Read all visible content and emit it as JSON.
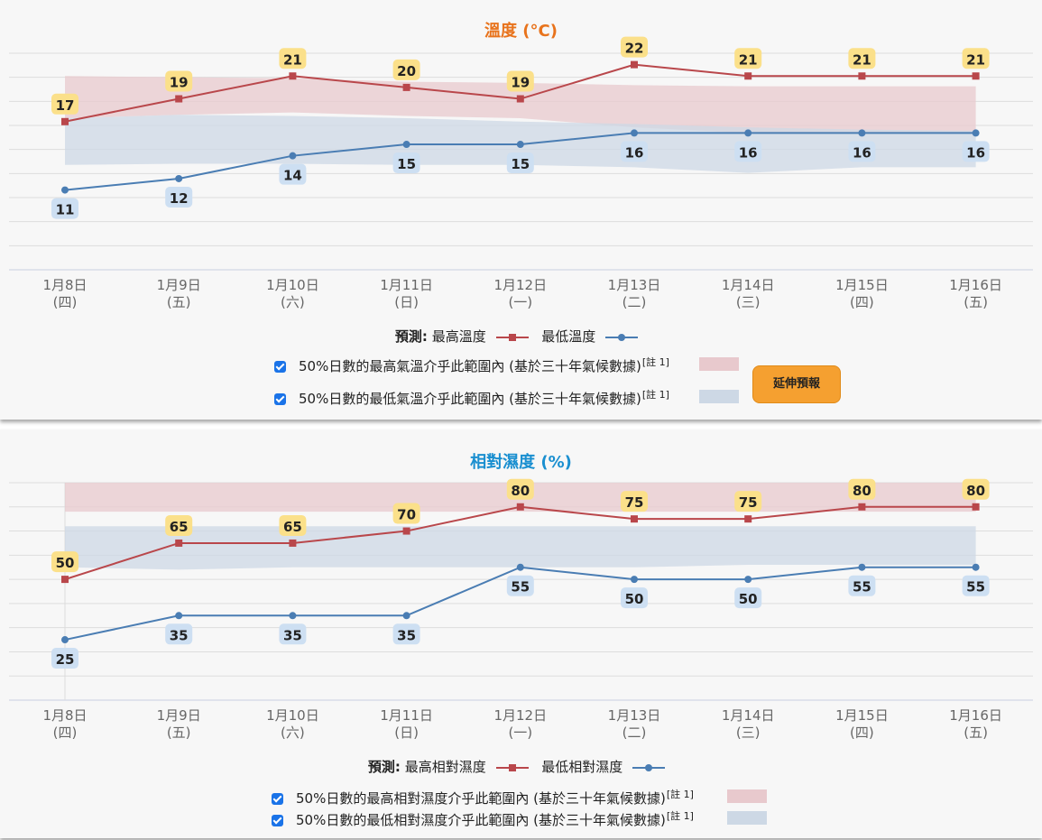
{
  "charts": {
    "temperature": {
      "title": "溫度 (°C)",
      "legend": {
        "prefix": "預測:",
        "max_label": "最高溫度",
        "min_label": "最低溫度",
        "band_max_text": "50%日數的最高氣溫介乎此範圍內 (基於三十年氣候數據)",
        "band_min_text": "50%日數的最低氣溫介乎此範圍內 (基於三十年氣候數據)",
        "note": "[註 1]"
      },
      "extend_button": "延伸預報"
    },
    "humidity": {
      "title": "相對濕度 (%)",
      "legend": {
        "prefix": "預測:",
        "max_label": "最高相對濕度",
        "min_label": "最低相對濕度",
        "band_max_text": "50%日數的最高相對濕度介乎此範圍內 (基於三十年氣候數據)",
        "band_min_text": "50%日數的最低相對濕度介乎此範圍內 (基於三十年氣候數據)",
        "note": "[註 1]"
      }
    }
  },
  "colors": {
    "max_line": "#b9474b",
    "min_line": "#4a7db3",
    "max_label_bg": "#fbe08a",
    "min_label_bg": "#cddff2",
    "max_band": "#e8c9cd",
    "min_band": "#cdd8e5",
    "temp_title": "#e8731c",
    "hum_title": "#1a8fd0",
    "grid": "#dddddd"
  },
  "chart_data": [
    {
      "type": "line",
      "title": "溫度 (°C)",
      "categories": [
        "1月8日\n(四)",
        "1月9日\n(五)",
        "1月10日\n(六)",
        "1月11日\n(日)",
        "1月12日\n(一)",
        "1月13日\n(二)",
        "1月14日\n(三)",
        "1月15日\n(四)",
        "1月16日\n(五)"
      ],
      "ylim": [
        4,
        23
      ],
      "grid": true,
      "series": [
        {
          "name": "最高溫度",
          "values": [
            17,
            19,
            21,
            20,
            19,
            22,
            21,
            21,
            21
          ]
        },
        {
          "name": "最低溫度",
          "values": [
            11,
            12,
            14,
            15,
            15,
            16,
            16,
            16,
            16
          ]
        }
      ],
      "bands": [
        {
          "name": "50%日數的最高氣溫介乎此範圍內",
          "low": [
            17.3,
            17.6,
            17.8,
            17.5,
            17.3,
            16.5,
            16.0,
            16.0,
            16.0
          ],
          "high": [
            21.0,
            20.9,
            20.8,
            20.5,
            20.4,
            20.2,
            20.1,
            20.1,
            20.1
          ]
        },
        {
          "name": "50%日數的最低氣溫介乎此範圍內",
          "low": [
            13.2,
            13.3,
            13.3,
            13.2,
            13.2,
            13.0,
            12.5,
            13.0,
            13.0
          ],
          "high": [
            17.3,
            17.6,
            17.5,
            17.3,
            17.0,
            16.8,
            16.5,
            16.3,
            16.2
          ]
        }
      ]
    },
    {
      "type": "line",
      "title": "相對濕度 (%)",
      "categories": [
        "1月8日\n(四)",
        "1月9日\n(五)",
        "1月10日\n(六)",
        "1月11日\n(日)",
        "1月12日\n(一)",
        "1月13日\n(二)",
        "1月14日\n(三)",
        "1月15日\n(四)",
        "1月16日\n(五)"
      ],
      "ylim": [
        0,
        90
      ],
      "grid": true,
      "series": [
        {
          "name": "最高相對濕度",
          "values": [
            50,
            65,
            65,
            70,
            80,
            75,
            75,
            80,
            80
          ]
        },
        {
          "name": "最低相對濕度",
          "values": [
            25,
            35,
            35,
            35,
            55,
            50,
            50,
            55,
            55
          ]
        }
      ],
      "bands": [
        {
          "name": "50%日數的最高相對濕度介乎此範圍內",
          "low": [
            78,
            78,
            78,
            78,
            78,
            78,
            78,
            78,
            78
          ],
          "high": [
            90,
            90,
            90,
            90,
            90,
            90,
            90,
            90,
            90
          ]
        },
        {
          "name": "50%日數的最低相對濕度介乎此範圍內",
          "low": [
            55,
            54,
            55,
            55,
            55,
            55,
            56,
            56,
            56
          ],
          "high": [
            72,
            72,
            72,
            72,
            72,
            72,
            72,
            72,
            72
          ]
        }
      ]
    }
  ]
}
